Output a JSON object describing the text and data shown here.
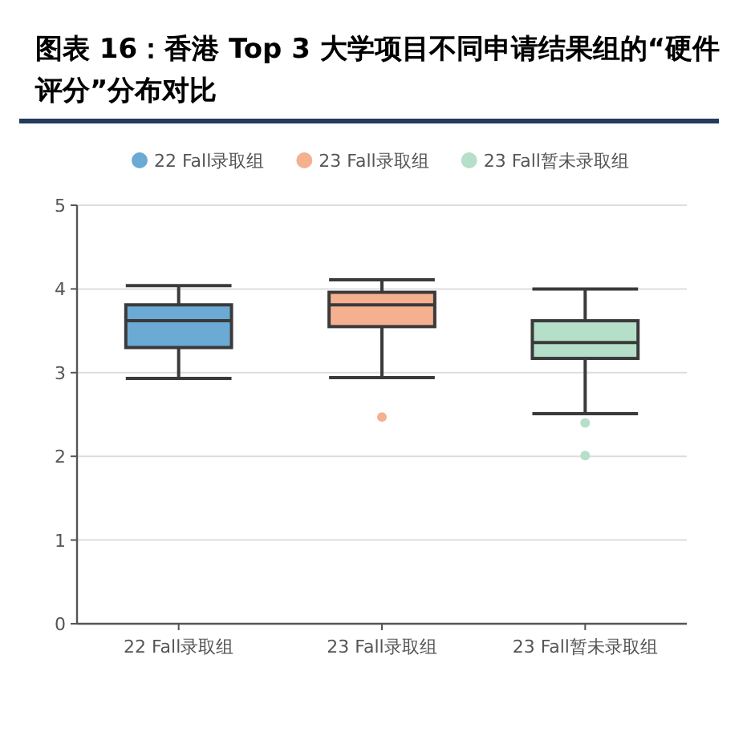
{
  "chart_data": {
    "type": "box",
    "title": "图表 16：香港 Top 3 大学项目不同申请结果组的“硬件评分”分布对比",
    "categories": [
      "22 Fall录取组",
      "23 Fall录取组",
      "23 Fall暂未录取组"
    ],
    "series": [
      {
        "name": "22 Fall录取组",
        "color": "#6aaad4",
        "boxes": [
          {
            "low": 2.93,
            "q1": 3.3,
            "median": 3.62,
            "q3": 3.81,
            "high": 4.04
          },
          null,
          null
        ]
      },
      {
        "name": "23 Fall录取组",
        "color": "#f5b090",
        "boxes": [
          null,
          {
            "low": 2.94,
            "q1": 3.55,
            "median": 3.81,
            "q3": 3.96,
            "high": 4.11,
            "outliers": [
              2.47
            ]
          },
          null
        ]
      },
      {
        "name": "23 Fall暂未录取组",
        "color": "#b5dfc8",
        "boxes": [
          null,
          null,
          {
            "low": 2.51,
            "q1": 3.17,
            "median": 3.36,
            "q3": 3.62,
            "high": 4.0,
            "outliers": [
              2.4,
              2.01
            ]
          }
        ]
      }
    ],
    "ylim": [
      0,
      5
    ],
    "yticks": [
      0,
      1,
      2,
      3,
      4,
      5
    ],
    "grid": "y",
    "legend": "top"
  }
}
